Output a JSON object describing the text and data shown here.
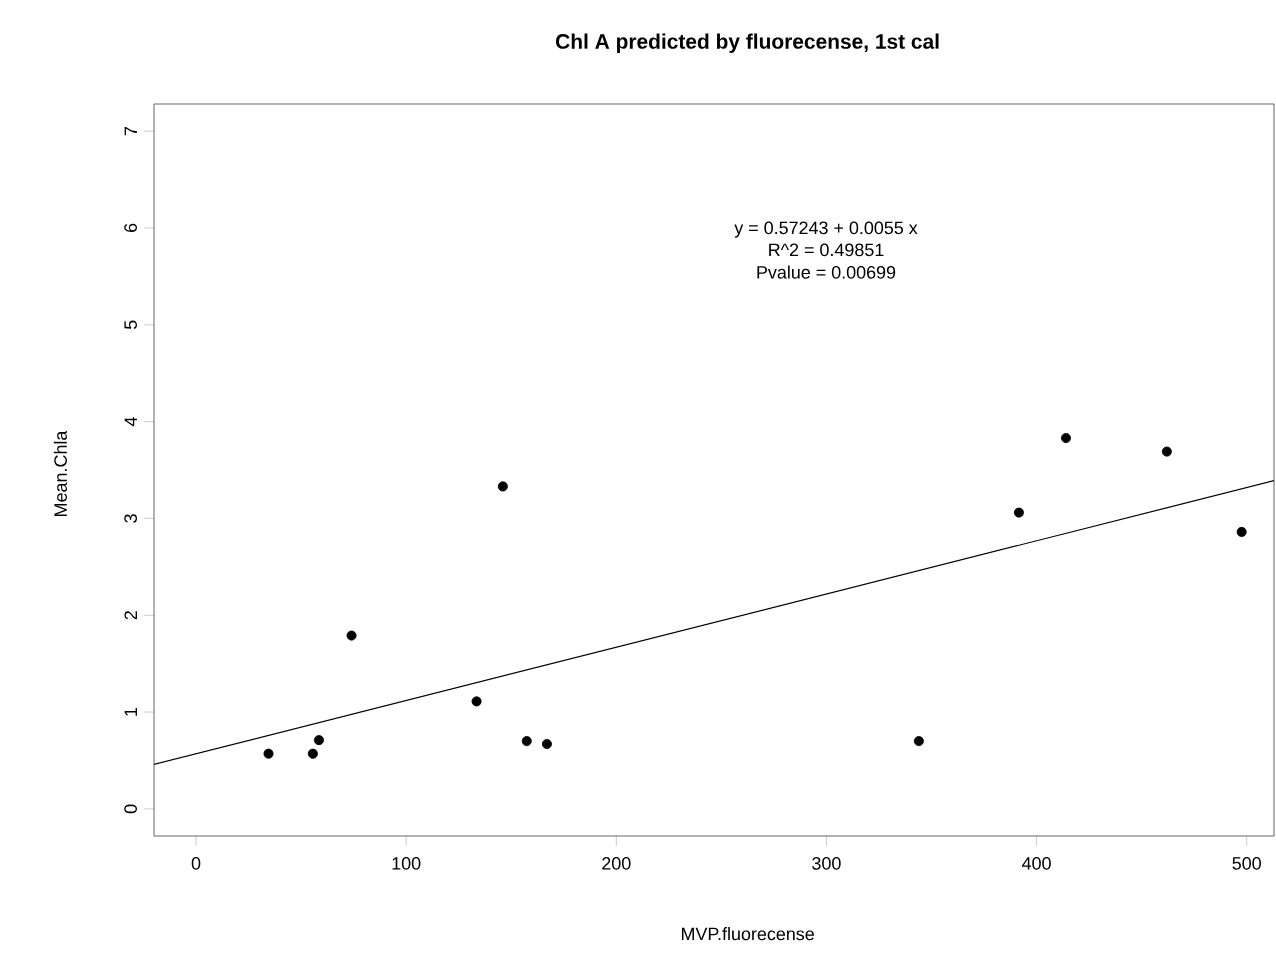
{
  "chart_data": {
    "type": "scatter",
    "title": "Chl A predicted by fluorecense, 1st cal",
    "xlabel": "MVP.fluorecense",
    "ylabel": "Mean.Chla",
    "xlim": [
      -20,
      513
    ],
    "ylim": [
      -0.28,
      7.28
    ],
    "xticks": [
      0,
      100,
      200,
      300,
      400,
      500
    ],
    "yticks": [
      0,
      1,
      2,
      3,
      4,
      5,
      6,
      7
    ],
    "annotations": [
      "y =  0.57243 + 0.0055 x",
      "R^2 = 0.49851",
      "Pvalue = 0.00699"
    ],
    "series": [
      {
        "color": "#000000",
        "marker": "circle",
        "x": [
          34.5,
          55.6,
          58.5,
          74,
          133.5,
          146,
          157.4,
          167,
          344,
          391.6,
          414,
          462,
          497.6
        ],
        "values": [
          0.57,
          0.57,
          0.71,
          1.79,
          1.11,
          3.33,
          0.7,
          0.67,
          0.7,
          3.06,
          3.83,
          3.69,
          2.86
        ]
      },
      {
        "type": "line",
        "color": "#000000",
        "line_style": "solid",
        "x": [
          -20,
          513
        ],
        "values": [
          0.46,
          3.39
        ]
      }
    ]
  }
}
